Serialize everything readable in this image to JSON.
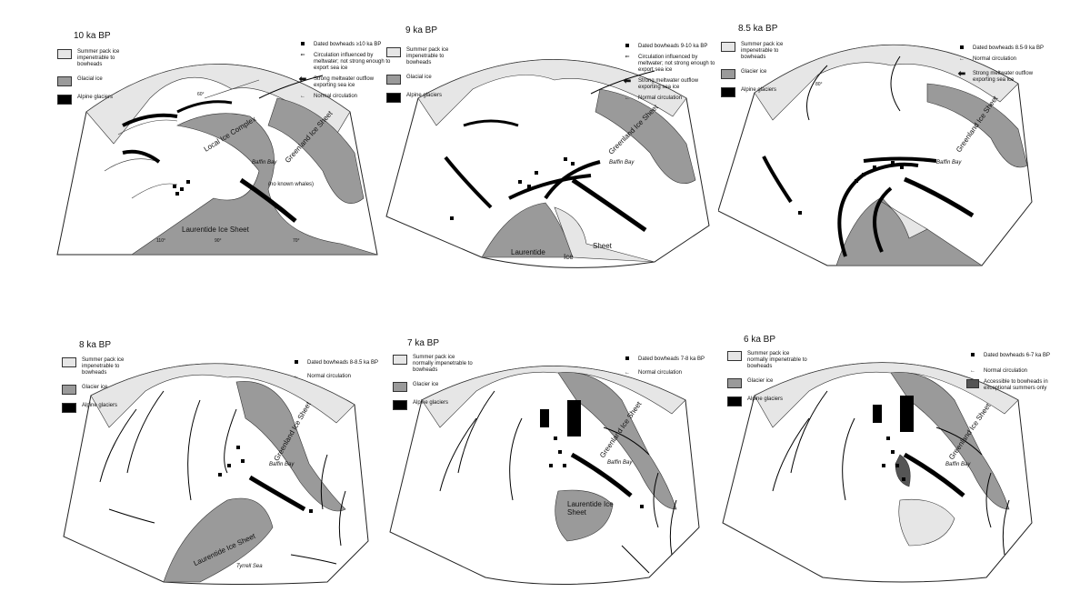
{
  "panels": [
    {
      "id": "p10",
      "title": "10 ka BP",
      "legend": [
        "Summer pack ice impenetrable to bowheads",
        "Glacial ice",
        "Alpine glaciers"
      ],
      "key": [
        {
          "sym": "dot",
          "text": "Dated bowheads ≥10 ka BP"
        },
        {
          "sym": "hollow-arrow",
          "text": "Circulation influenced by meltwater; not strong enough to export sea ice"
        },
        {
          "sym": "bold-arrow",
          "text": "Strong meltwater outflow exporting sea ice"
        },
        {
          "sym": "thin-arrow",
          "text": "Normal circulation"
        }
      ],
      "labels": [
        "Local Ice Complex",
        "Greenland Ice Sheet",
        "Baffin Bay",
        "(no known whales)",
        "Laurentide Ice Sheet"
      ]
    },
    {
      "id": "p9",
      "title": "9 ka BP",
      "legend": [
        "Summer pack ice impenetrable to bowheads",
        "Glacial ice",
        "Alpine glaciers"
      ],
      "key": [
        {
          "sym": "dot",
          "text": "Dated bowheads 9-10 ka BP"
        },
        {
          "sym": "hollow-arrow",
          "text": "Circulation influenced by meltwater; not strong enough to export sea ice"
        },
        {
          "sym": "bold-arrow",
          "text": "Strong meltwater outflow exporting sea ice"
        },
        {
          "sym": "thin-arrow",
          "text": "Normal circulation"
        }
      ],
      "labels": [
        "Greenland Ice Sheet",
        "Baffin Bay",
        "Laurentide",
        "Ice",
        "Sheet"
      ]
    },
    {
      "id": "p85",
      "title": "8.5 ka BP",
      "legend": [
        "Summer pack ice impenetrable to bowheads",
        "Glacier ice",
        "Alpine glaciers"
      ],
      "key": [
        {
          "sym": "dot",
          "text": "Dated bowheads 8.5-9 ka BP"
        },
        {
          "sym": "thin-arrow",
          "text": "Normal circulation"
        },
        {
          "sym": "bold-arrow",
          "text": "Strong meltwater outflow exporting sea ice"
        }
      ],
      "labels": [
        "Greenland Ice Sheet",
        "Baffin Bay"
      ]
    },
    {
      "id": "p8",
      "title": "8 ka BP",
      "legend": [
        "Summer pack ice impenetrable to bowheads",
        "Glacier ice",
        "Alpine glaciers"
      ],
      "key": [
        {
          "sym": "dot",
          "text": "Dated bowheads 8-8.5 ka BP"
        },
        {
          "sym": "thin-arrow",
          "text": "Normal circulation"
        }
      ],
      "labels": [
        "Greenland Ice Sheet",
        "Baffin Bay",
        "Laurentide Ice Sheet",
        "Tyrrell Sea"
      ]
    },
    {
      "id": "p7",
      "title": "7 ka BP",
      "legend": [
        "Summer pack ice normally impenetrable to bowheads",
        "Glacier ice",
        "Alpine glaciers"
      ],
      "key": [
        {
          "sym": "dot",
          "text": "Dated bowheads 7-8 ka BP"
        },
        {
          "sym": "thin-arrow",
          "text": "Normal circulation"
        }
      ],
      "labels": [
        "Greenland Ice Sheet",
        "Baffin Bay",
        "Laurentide Ice Sheet"
      ]
    },
    {
      "id": "p6",
      "title": "6 ka BP",
      "legend": [
        "Summer pack ice normally impenetrable to bowheads",
        "Glacier ice",
        "Alpine glaciers"
      ],
      "key": [
        {
          "sym": "dot",
          "text": "Dated bowheads 6-7 ka BP"
        },
        {
          "sym": "thin-arrow",
          "text": "Normal circulation"
        },
        {
          "sym": "dark-box",
          "text": "Accessible to bowheads in exceptional summers only"
        }
      ],
      "labels": [
        "Greenland Ice Sheet",
        "Baffin Bay"
      ]
    }
  ],
  "graticule": [
    "60°",
    "80°",
    "110°",
    "90°",
    "70°"
  ]
}
